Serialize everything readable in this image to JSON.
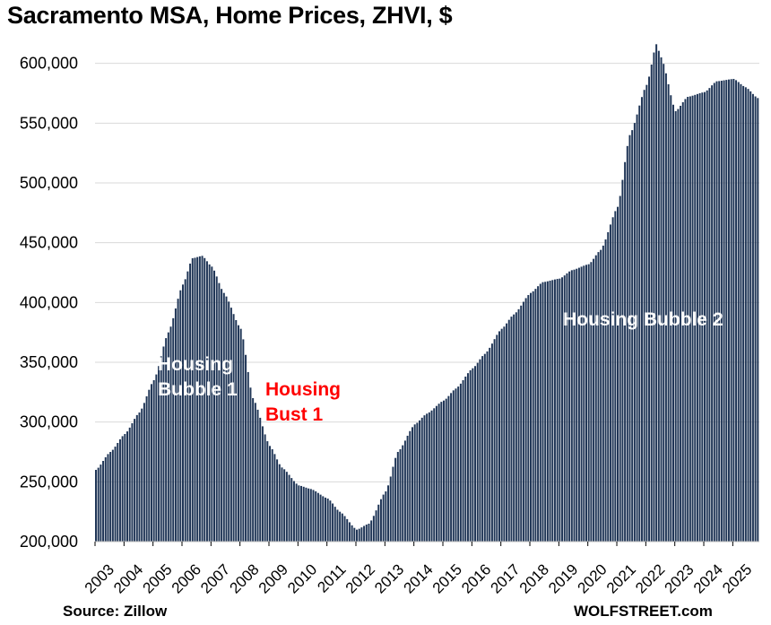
{
  "chart_data": {
    "type": "bar",
    "title": "Sacramento MSA, Home Prices, ZHVI, $",
    "xlabel": "",
    "ylabel": "",
    "ylim": [
      200000,
      620000
    ],
    "yticks": [
      200000,
      250000,
      300000,
      350000,
      400000,
      450000,
      500000,
      550000,
      600000
    ],
    "ytick_labels": [
      "200,000",
      "250,000",
      "300,000",
      "350,000",
      "400,000",
      "450,000",
      "500,000",
      "550,000",
      "600,000"
    ],
    "xticks": [
      "2003",
      "2004",
      "2005",
      "2006",
      "2007",
      "2008",
      "2009",
      "2010",
      "2011",
      "2012",
      "2013",
      "2014",
      "2015",
      "2016",
      "2017",
      "2018",
      "2019",
      "2020",
      "2021",
      "2022",
      "2023",
      "2024",
      "2025"
    ],
    "frequency": "monthly",
    "start": "2003-01",
    "grid": true,
    "bar_color": "#1f3556",
    "anchors": [
      [
        "2003-01",
        260000
      ],
      [
        "2003-07",
        275000
      ],
      [
        "2004-01",
        290000
      ],
      [
        "2004-07",
        308000
      ],
      [
        "2005-01",
        335000
      ],
      [
        "2005-07",
        375000
      ],
      [
        "2006-01",
        415000
      ],
      [
        "2006-05",
        437000
      ],
      [
        "2006-09",
        439000
      ],
      [
        "2007-01",
        430000
      ],
      [
        "2007-06",
        408000
      ],
      [
        "2008-01",
        378000
      ],
      [
        "2008-06",
        320000
      ],
      [
        "2009-01",
        280000
      ],
      [
        "2009-06",
        262000
      ],
      [
        "2010-01",
        247000
      ],
      [
        "2010-06",
        244000
      ],
      [
        "2011-01",
        236000
      ],
      [
        "2011-06",
        225000
      ],
      [
        "2012-01",
        210000
      ],
      [
        "2012-06",
        215000
      ],
      [
        "2013-01",
        242000
      ],
      [
        "2013-06",
        275000
      ],
      [
        "2014-01",
        298000
      ],
      [
        "2014-06",
        307000
      ],
      [
        "2015-01",
        318000
      ],
      [
        "2015-06",
        328000
      ],
      [
        "2016-01",
        345000
      ],
      [
        "2016-06",
        357000
      ],
      [
        "2017-01",
        378000
      ],
      [
        "2017-06",
        390000
      ],
      [
        "2018-01",
        408000
      ],
      [
        "2018-06",
        417000
      ],
      [
        "2019-01",
        420000
      ],
      [
        "2019-06",
        427000
      ],
      [
        "2020-01",
        432000
      ],
      [
        "2020-06",
        444000
      ],
      [
        "2021-01",
        480000
      ],
      [
        "2021-06",
        540000
      ],
      [
        "2022-01",
        582000
      ],
      [
        "2022-05",
        616000
      ],
      [
        "2022-07",
        605000
      ],
      [
        "2023-01",
        560000
      ],
      [
        "2023-06",
        572000
      ],
      [
        "2024-01",
        576000
      ],
      [
        "2024-06",
        585000
      ],
      [
        "2025-01",
        587000
      ],
      [
        "2025-06",
        580000
      ],
      [
        "2025-11",
        571000
      ]
    ]
  },
  "annotations": {
    "bubble1": {
      "line1": "Housing",
      "line2": "Bubble 1",
      "color": "#ffffff"
    },
    "bust1": {
      "line1": "Housing",
      "line2": "Bust 1",
      "color": "#ff0000"
    },
    "bubble2": {
      "line1": "Housing Bubble 2",
      "color": "#ffffff"
    }
  },
  "footer": {
    "source": "Source: Zillow",
    "watermark": "WOLFSTREET.com"
  }
}
